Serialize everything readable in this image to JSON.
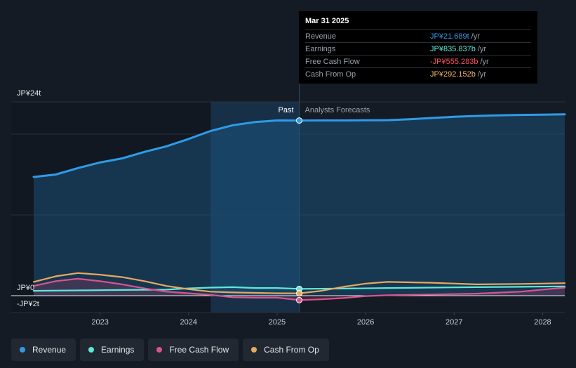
{
  "tooltip": {
    "date": "Mar 31 2025",
    "rows": [
      {
        "label": "Revenue",
        "value": "JP¥21.689t",
        "unit": "/yr",
        "color": "#2f9be8"
      },
      {
        "label": "Earnings",
        "value": "JP¥835.837b",
        "unit": "/yr",
        "color": "#5ee8d8"
      },
      {
        "label": "Free Cash Flow",
        "value": "-JP¥555.283b",
        "unit": "/yr",
        "color": "#ff4f5e"
      },
      {
        "label": "Cash From Op",
        "value": "JP¥292.152b",
        "unit": "/yr",
        "color": "#f3b56b"
      }
    ]
  },
  "legend": [
    {
      "label": "Revenue",
      "color": "#2f9be8"
    },
    {
      "label": "Earnings",
      "color": "#5ee8d8"
    },
    {
      "label": "Free Cash Flow",
      "color": "#d9548f"
    },
    {
      "label": "Cash From Op",
      "color": "#e8a95e"
    }
  ],
  "chart_data": {
    "type": "line",
    "y_tick_labels": [
      "JP¥24t",
      "JP¥0",
      "-JP¥2t"
    ],
    "y_tick_values": [
      24,
      0,
      -2
    ],
    "ylim": [
      -2,
      24
    ],
    "x_tick_labels": [
      "2023",
      "2024",
      "2025",
      "2026",
      "2027",
      "2028"
    ],
    "x_tick_values": [
      2023,
      2024,
      2025,
      2026,
      2027,
      2028
    ],
    "xlim": [
      2022.25,
      2028.25
    ],
    "past_label": "Past",
    "forecast_label": "Analysts Forecasts",
    "divider_x": 2025.25,
    "highlight_start_x": 2024.25,
    "series": [
      {
        "name": "Revenue",
        "color": "#2f9be8",
        "x": [
          2022.25,
          2022.5,
          2022.75,
          2023.0,
          2023.25,
          2023.5,
          2023.75,
          2024.0,
          2024.25,
          2024.5,
          2024.75,
          2025.0,
          2025.25,
          2025.5,
          2025.75,
          2026.0,
          2026.25,
          2026.5,
          2026.75,
          2027.0,
          2027.25,
          2027.5,
          2027.75,
          2028.0,
          2028.25
        ],
        "values": [
          14.7,
          15.0,
          15.8,
          16.5,
          17.0,
          17.8,
          18.5,
          19.4,
          20.4,
          21.1,
          21.5,
          21.7,
          21.69,
          21.7,
          21.7,
          21.72,
          21.73,
          21.85,
          22.0,
          22.15,
          22.25,
          22.32,
          22.38,
          22.42,
          22.45
        ]
      },
      {
        "name": "Earnings",
        "color": "#5ee8d8",
        "x": [
          2022.25,
          2022.75,
          2023.25,
          2023.75,
          2024.0,
          2024.25,
          2024.5,
          2024.75,
          2025.0,
          2025.25,
          2025.75,
          2026.25,
          2026.75,
          2027.25,
          2027.75,
          2028.25
        ],
        "values": [
          0.6,
          0.65,
          0.7,
          0.75,
          0.9,
          1.0,
          1.05,
          0.95,
          0.95,
          0.84,
          0.88,
          0.95,
          1.0,
          1.05,
          1.1,
          1.15
        ]
      },
      {
        "name": "Free Cash Flow",
        "color": "#d9548f",
        "x": [
          2022.25,
          2022.5,
          2022.75,
          2023.0,
          2023.25,
          2023.5,
          2023.75,
          2024.0,
          2024.25,
          2024.5,
          2024.75,
          2025.0,
          2025.25,
          2025.5,
          2025.75,
          2026.0,
          2026.25,
          2026.75,
          2027.25,
          2027.75,
          2028.25
        ],
        "values": [
          1.2,
          1.8,
          2.1,
          1.8,
          1.4,
          0.9,
          0.5,
          0.3,
          0.1,
          -0.2,
          -0.25,
          -0.25,
          -0.55,
          -0.45,
          -0.3,
          -0.05,
          0.05,
          0.15,
          0.25,
          0.5,
          1.0
        ]
      },
      {
        "name": "Cash From Op",
        "color": "#e8a95e",
        "x": [
          2022.25,
          2022.5,
          2022.75,
          2023.0,
          2023.25,
          2023.5,
          2023.75,
          2024.0,
          2024.25,
          2024.5,
          2024.75,
          2025.0,
          2025.25,
          2025.5,
          2025.75,
          2026.0,
          2026.25,
          2026.75,
          2027.25,
          2027.75,
          2028.25
        ],
        "values": [
          1.7,
          2.4,
          2.8,
          2.6,
          2.3,
          1.8,
          1.2,
          0.8,
          0.5,
          0.4,
          0.35,
          0.3,
          0.29,
          0.6,
          1.1,
          1.5,
          1.7,
          1.6,
          1.4,
          1.45,
          1.55
        ]
      }
    ]
  }
}
